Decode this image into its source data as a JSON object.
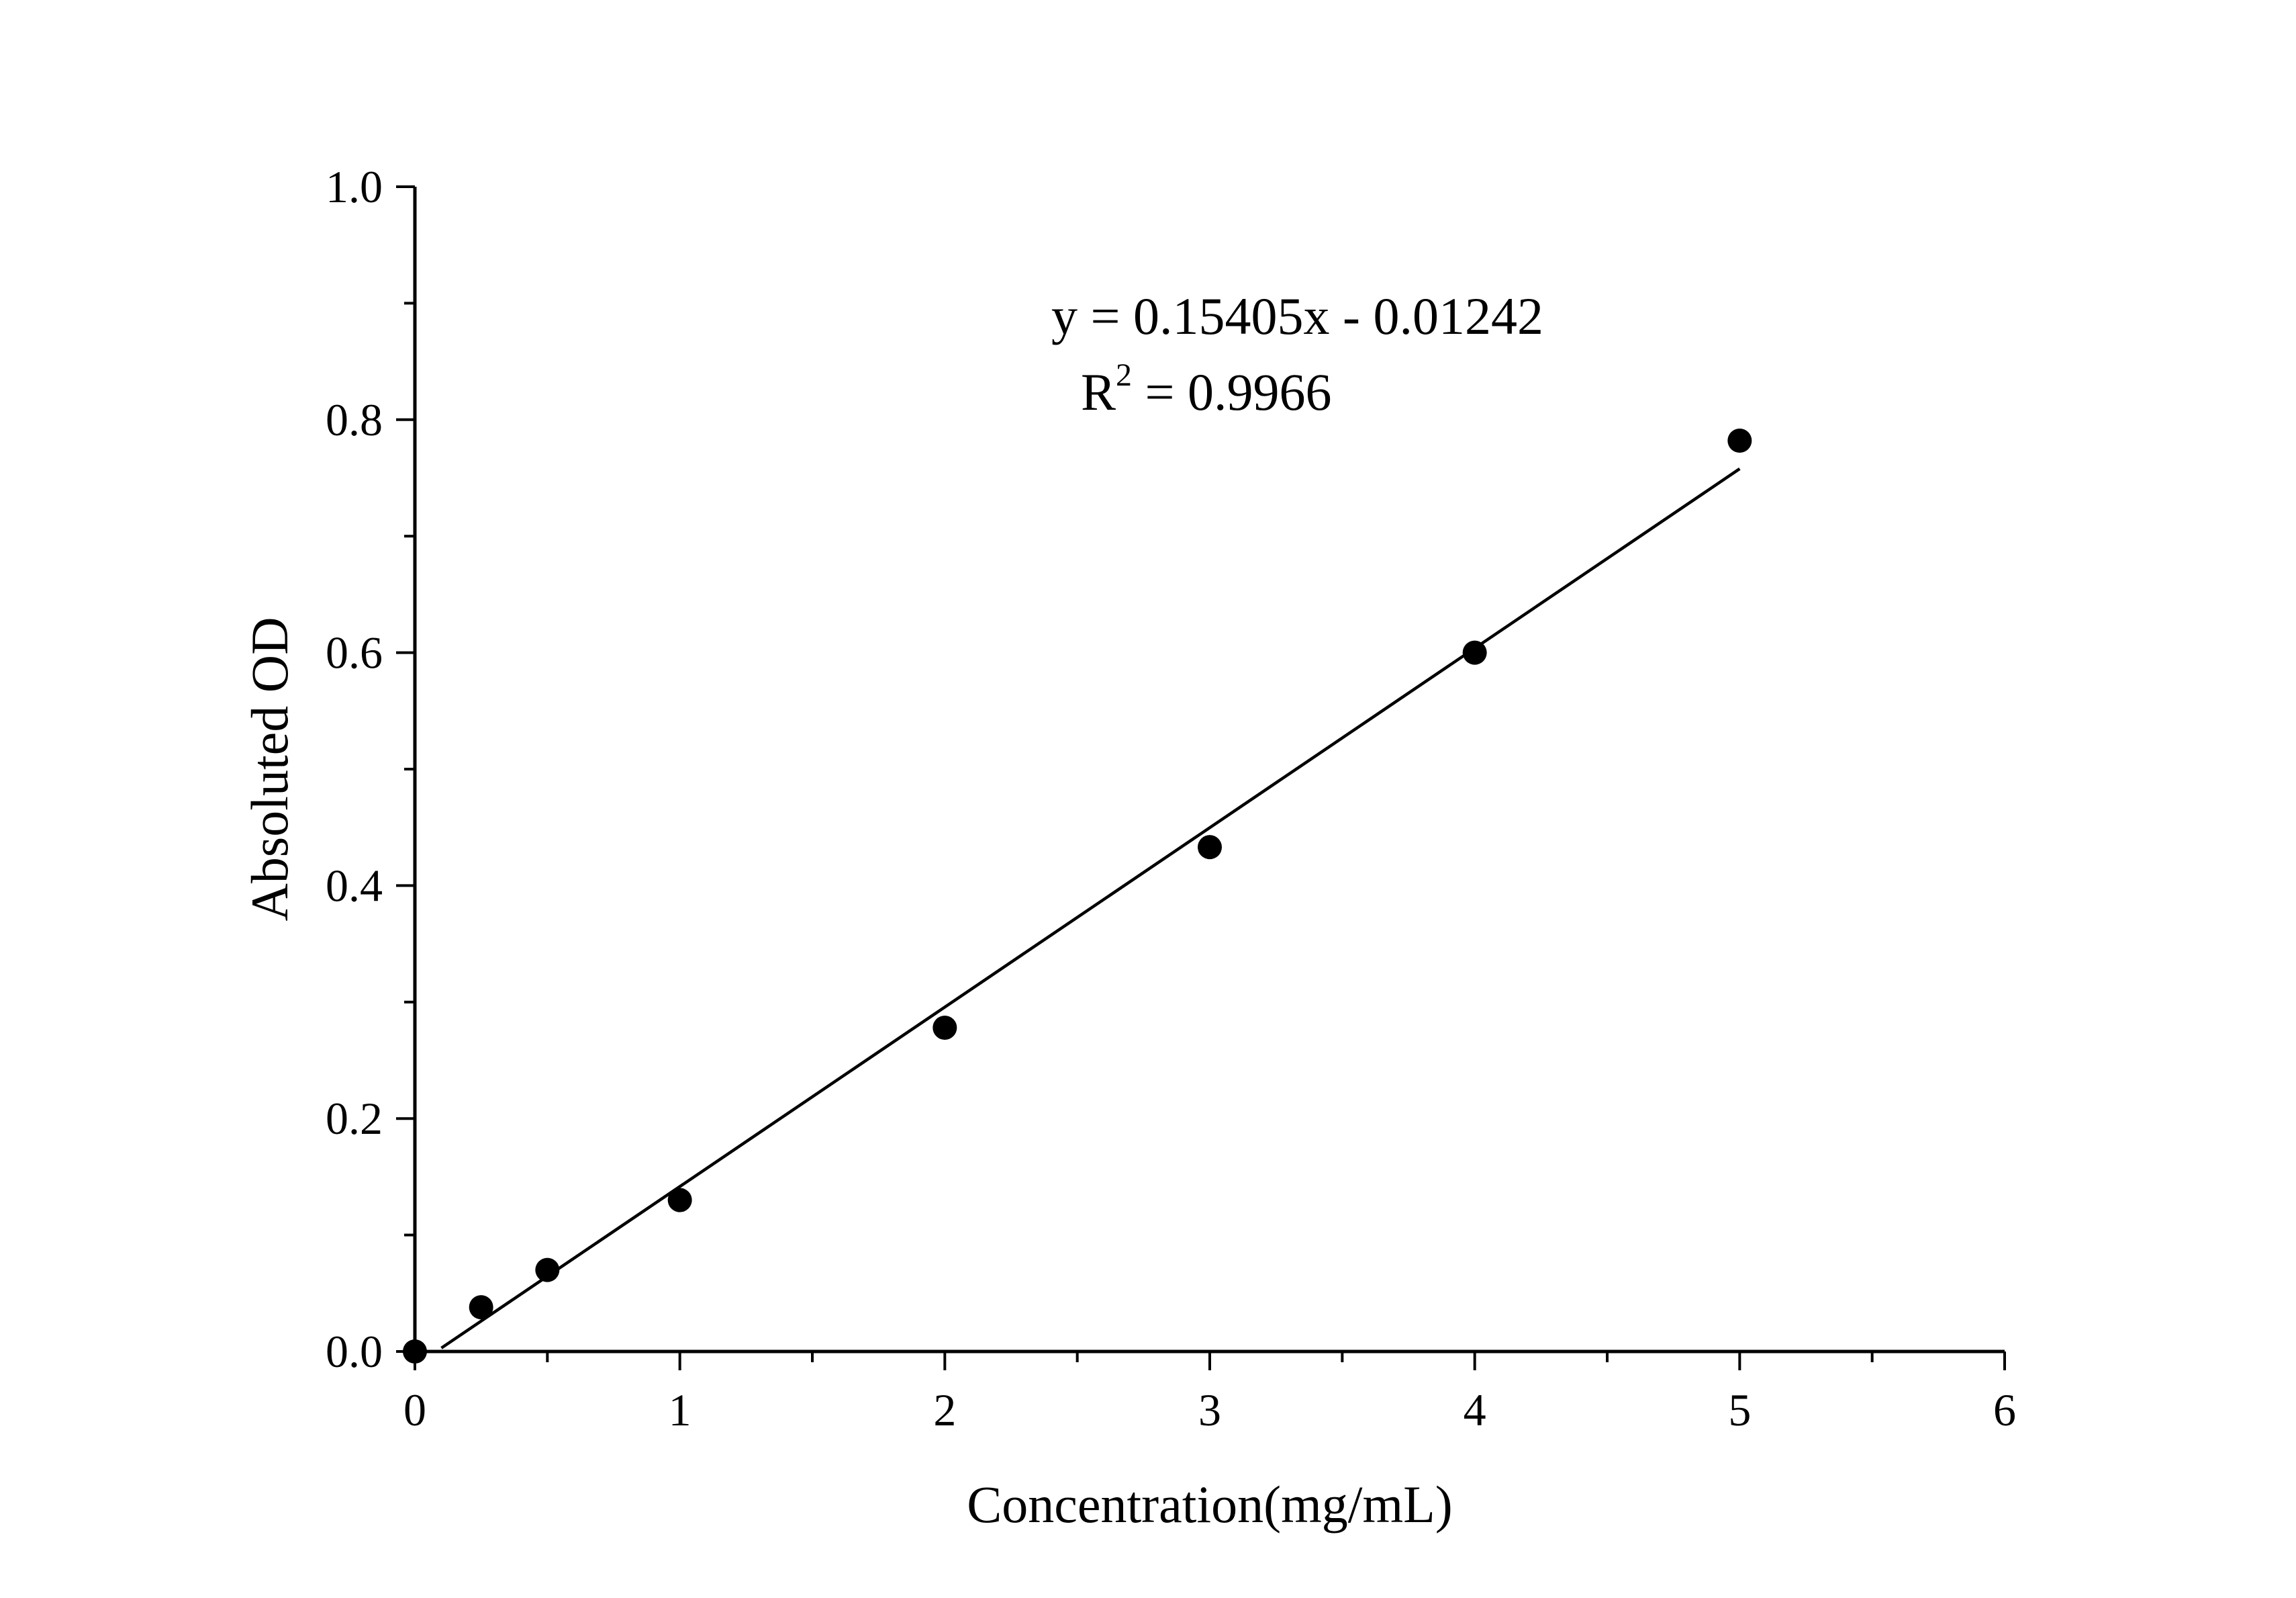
{
  "chart_data": {
    "type": "scatter",
    "xlabel": "Concentration(mg/mL)",
    "ylabel": "Absoluted OD",
    "xlim": [
      0,
      6
    ],
    "ylim": [
      0,
      1.0
    ],
    "x_ticks": [
      0,
      1,
      2,
      3,
      4,
      5,
      6
    ],
    "x_tick_labels": [
      "0",
      "1",
      "2",
      "3",
      "4",
      "5",
      "6"
    ],
    "x_minor_ticks": [
      0.5,
      1.5,
      2.5,
      3.5,
      4.5,
      5.5
    ],
    "y_ticks": [
      0.0,
      0.2,
      0.4,
      0.6,
      0.8,
      1.0
    ],
    "y_tick_labels": [
      "0.0",
      "0.2",
      "0.4",
      "0.6",
      "0.8",
      "1.0"
    ],
    "y_minor_ticks": [
      0.1,
      0.3,
      0.5,
      0.7,
      0.9
    ],
    "grid": false,
    "series": [
      {
        "marker": "filled-circle",
        "color": "#000000",
        "x": [
          0,
          0.25,
          0.5,
          1,
          2,
          3,
          4,
          5
        ],
        "y": [
          0.0,
          0.038,
          0.07,
          0.13,
          0.278,
          0.433,
          0.6,
          0.782
        ]
      }
    ],
    "fit_line": {
      "slope": 0.15405,
      "intercept": -0.01242,
      "x_range": [
        0.1,
        5
      ],
      "color": "#000000"
    },
    "annotations": {
      "equation": "y = 0.15405x - 0.01242",
      "r_squared_prefix": "R",
      "r_squared_sup": "2",
      "r_squared_rest": " = 0.9966"
    }
  }
}
